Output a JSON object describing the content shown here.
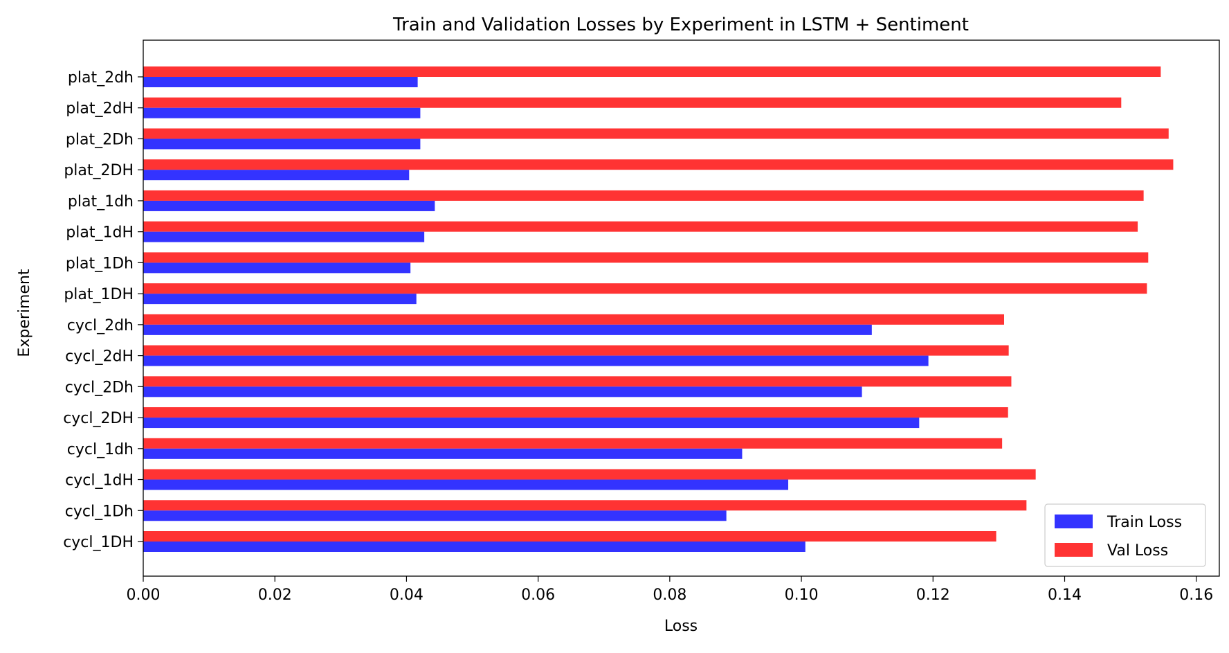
{
  "colors": {
    "train": "#3333ff",
    "val": "#ff3333",
    "axis": "#000000",
    "background": "#ffffff"
  },
  "chart_data": {
    "type": "bar",
    "orientation": "horizontal",
    "title": "Train and Validation Losses by Experiment in LSTM + Sentiment",
    "xlabel": "Loss",
    "ylabel": "Experiment",
    "xlim": [
      0.0,
      0.1635
    ],
    "xticks": [
      "0.00",
      "0.02",
      "0.04",
      "0.06",
      "0.08",
      "0.10",
      "0.12",
      "0.14",
      "0.16"
    ],
    "xtick_values": [
      0.0,
      0.02,
      0.04,
      0.06,
      0.08,
      0.1,
      0.12,
      0.14,
      0.16
    ],
    "grid": false,
    "legend_position": "lower-right",
    "categories": [
      "cycl_1DH",
      "cycl_1Dh",
      "cycl_1dH",
      "cycl_1dh",
      "cycl_2DH",
      "cycl_2Dh",
      "cycl_2dH",
      "cycl_2dh",
      "plat_1DH",
      "plat_1Dh",
      "plat_1dH",
      "plat_1dh",
      "plat_2DH",
      "plat_2Dh",
      "plat_2dH",
      "plat_2dh"
    ],
    "series": [
      {
        "name": "Train Loss",
        "color": "#3333ff",
        "values": [
          0.1006,
          0.0886,
          0.098,
          0.091,
          0.1179,
          0.1092,
          0.1193,
          0.1107,
          0.0415,
          0.0406,
          0.0427,
          0.0443,
          0.0404,
          0.0421,
          0.0421,
          0.0417
        ]
      },
      {
        "name": "Val Loss",
        "color": "#ff3333",
        "values": [
          0.1296,
          0.1342,
          0.1356,
          0.1305,
          0.1314,
          0.1319,
          0.1315,
          0.1308,
          0.1525,
          0.1527,
          0.1511,
          0.152,
          0.1565,
          0.1558,
          0.1486,
          0.1546
        ]
      }
    ]
  }
}
